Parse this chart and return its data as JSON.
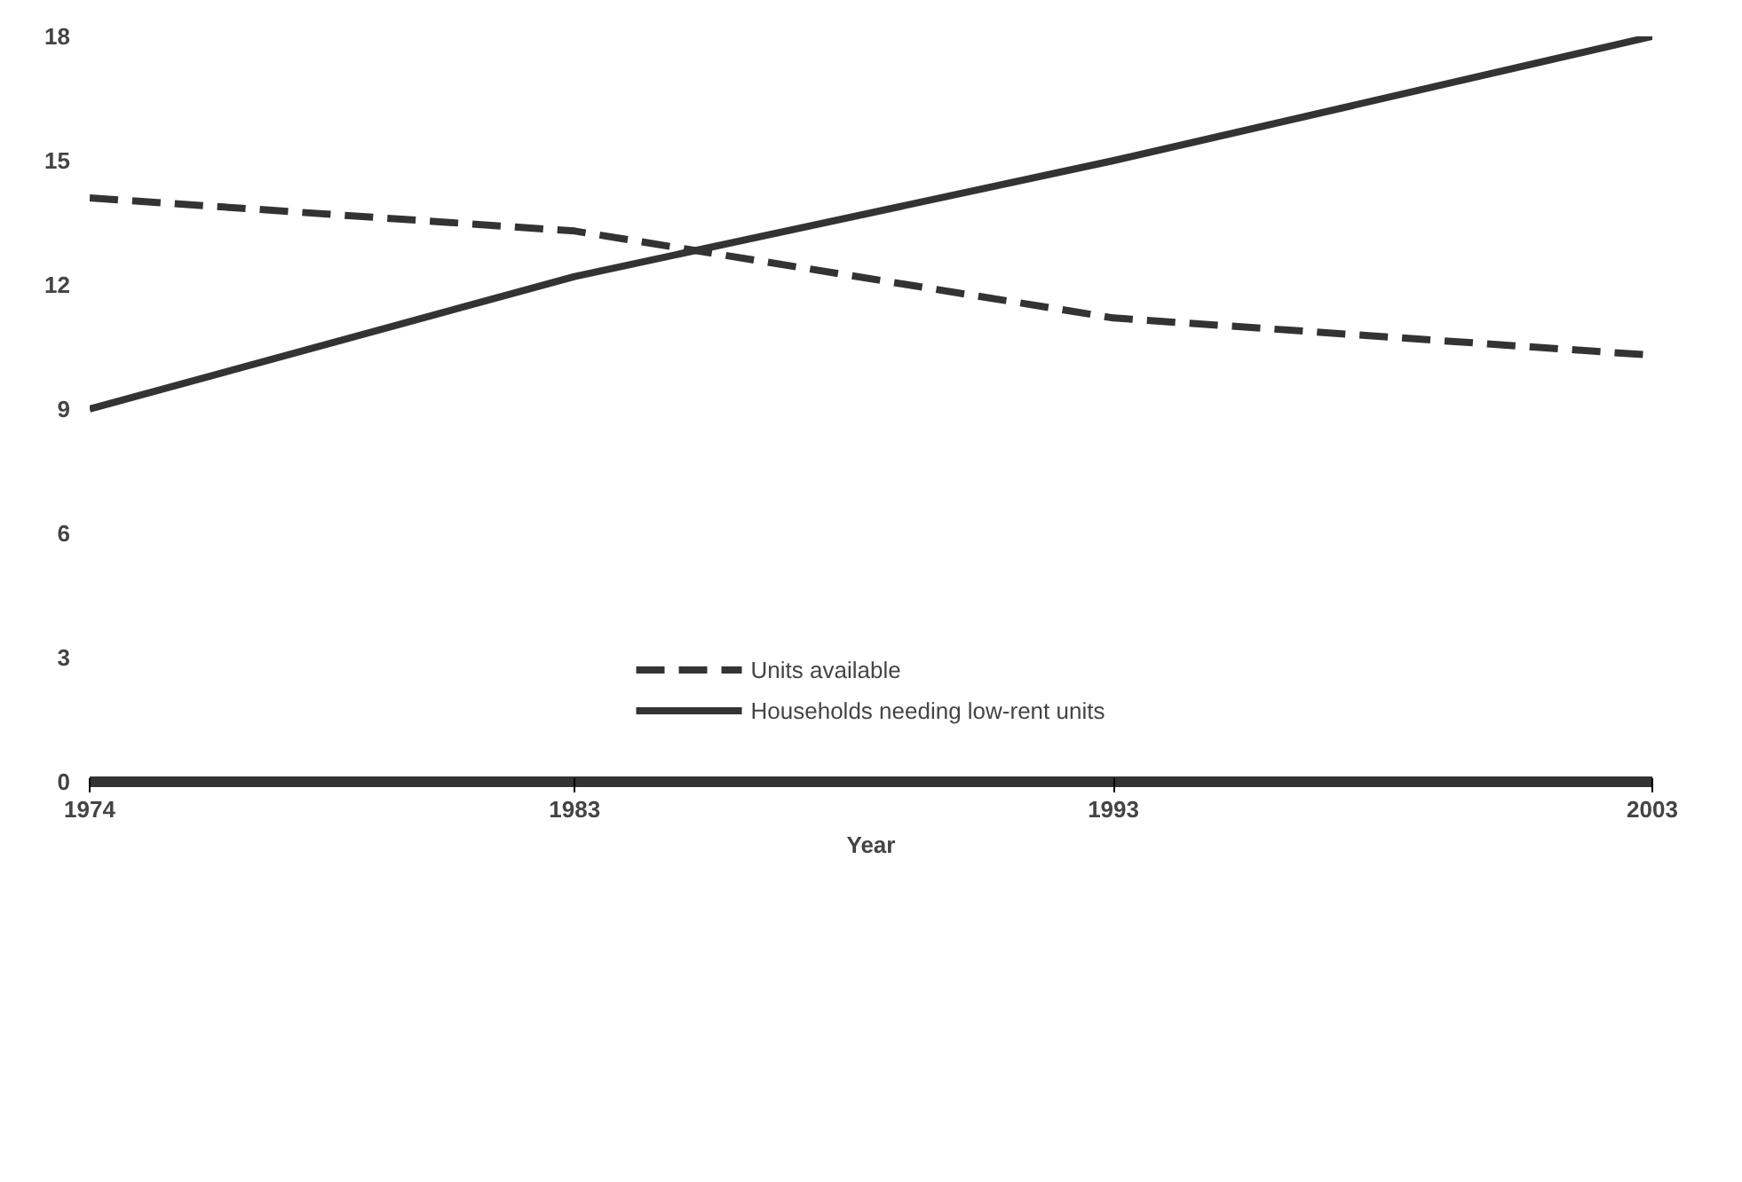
{
  "chart_data": {
    "type": "line",
    "xlabel": "Year",
    "x": [
      1974,
      1983,
      1993,
      2003
    ],
    "series": [
      {
        "name": "Units available",
        "color": "#333333",
        "line_style": "dashed",
        "values": [
          14.1,
          13.3,
          11.2,
          10.3
        ]
      },
      {
        "name": "Households needing low-rent units",
        "color": "#333333",
        "line_style": "solid",
        "values": [
          9,
          12.2,
          15,
          18
        ]
      }
    ],
    "xlim": [
      1974,
      2003
    ],
    "xticks": [
      1974,
      1983,
      1993,
      2003
    ],
    "ylim": [
      0,
      18
    ],
    "yticks": [
      0,
      3,
      6,
      9,
      12,
      15,
      18
    ],
    "grid": false,
    "legend": "bottom",
    "marker": "none"
  }
}
